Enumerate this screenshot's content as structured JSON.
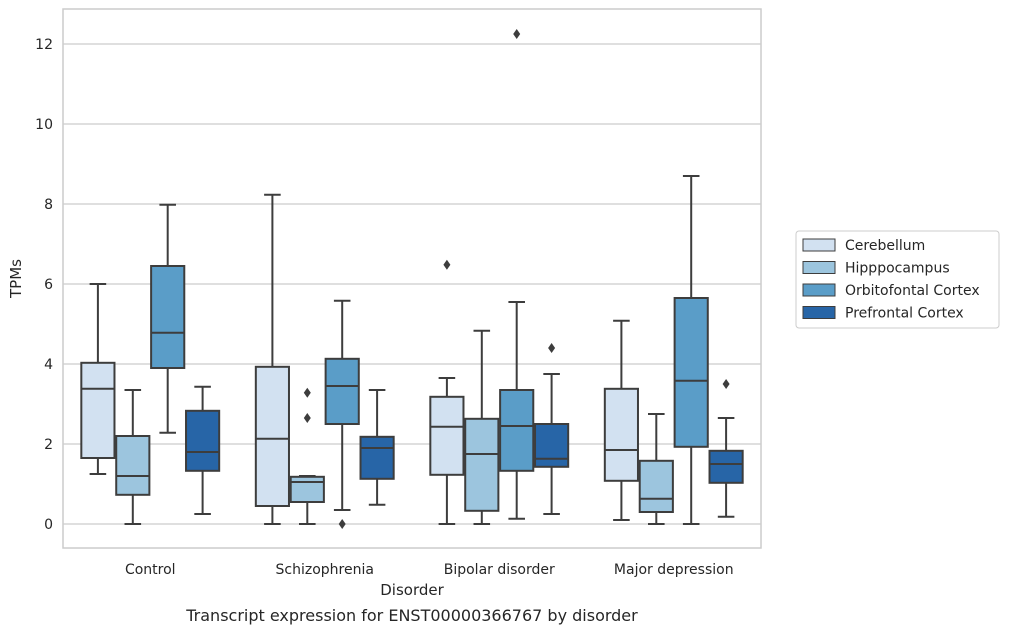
{
  "caption": "Transcript expression for ENST00000366767 by disorder",
  "chart_data": {
    "type": "box",
    "xlabel": "Disorder",
    "ylabel": "TPMs",
    "ylim": [
      -0.6,
      12.9
    ],
    "yticks": [
      0,
      2,
      4,
      6,
      8,
      10,
      12
    ],
    "grid": "horizontal",
    "legend_position": "right",
    "categories": [
      "Control",
      "Schizophrenia",
      "Bipolar disorder",
      "Major depression"
    ],
    "series": [
      {
        "name": "Cerebellum",
        "color": "#d2e1f1",
        "boxes": [
          {
            "whisker_low": 1.25,
            "q1": 1.65,
            "median": 3.38,
            "q3": 4.03,
            "whisker_high": 6.0,
            "outliers": []
          },
          {
            "whisker_low": 0.0,
            "q1": 0.45,
            "median": 2.13,
            "q3": 3.93,
            "whisker_high": 8.23,
            "outliers": []
          },
          {
            "whisker_low": 0.0,
            "q1": 1.23,
            "median": 2.43,
            "q3": 3.18,
            "whisker_high": 3.65,
            "outliers": [
              6.48
            ]
          },
          {
            "whisker_low": 0.1,
            "q1": 1.08,
            "median": 1.85,
            "q3": 3.38,
            "whisker_high": 5.08,
            "outliers": []
          }
        ]
      },
      {
        "name": "Hipppocampus",
        "color": "#9cc5de",
        "boxes": [
          {
            "whisker_low": 0.0,
            "q1": 0.73,
            "median": 1.2,
            "q3": 2.2,
            "whisker_high": 3.35,
            "outliers": []
          },
          {
            "whisker_low": 0.0,
            "q1": 0.55,
            "median": 1.05,
            "q3": 1.18,
            "whisker_high": 1.2,
            "outliers": [
              3.28,
              2.65
            ]
          },
          {
            "whisker_low": 0.0,
            "q1": 0.33,
            "median": 1.75,
            "q3": 2.63,
            "whisker_high": 4.83,
            "outliers": []
          },
          {
            "whisker_low": 0.0,
            "q1": 0.3,
            "median": 0.63,
            "q3": 1.58,
            "whisker_high": 2.75,
            "outliers": []
          }
        ]
      },
      {
        "name": "Orbitofontal Cortex",
        "color": "#5a9dc8",
        "boxes": [
          {
            "whisker_low": 2.28,
            "q1": 3.9,
            "median": 4.78,
            "q3": 6.45,
            "whisker_high": 7.98,
            "outliers": []
          },
          {
            "whisker_low": 0.35,
            "q1": 2.5,
            "median": 3.45,
            "q3": 4.13,
            "whisker_high": 5.58,
            "outliers": [
              0.0
            ]
          },
          {
            "whisker_low": 0.13,
            "q1": 1.33,
            "median": 2.45,
            "q3": 3.35,
            "whisker_high": 5.55,
            "outliers": [
              12.25
            ]
          },
          {
            "whisker_low": 0.0,
            "q1": 1.93,
            "median": 3.58,
            "q3": 5.65,
            "whisker_high": 8.7,
            "outliers": []
          }
        ]
      },
      {
        "name": "Prefrontal Cortex",
        "color": "#2765a7",
        "boxes": [
          {
            "whisker_low": 0.25,
            "q1": 1.33,
            "median": 1.8,
            "q3": 2.83,
            "whisker_high": 3.43,
            "outliers": []
          },
          {
            "whisker_low": 0.48,
            "q1": 1.13,
            "median": 1.9,
            "q3": 2.18,
            "whisker_high": 3.35,
            "outliers": []
          },
          {
            "whisker_low": 0.25,
            "q1": 1.43,
            "median": 1.63,
            "q3": 2.5,
            "whisker_high": 3.75,
            "outliers": [
              4.4
            ]
          },
          {
            "whisker_low": 0.18,
            "q1": 1.03,
            "median": 1.5,
            "q3": 1.83,
            "whisker_high": 2.65,
            "outliers": [
              3.5
            ]
          }
        ]
      }
    ]
  }
}
